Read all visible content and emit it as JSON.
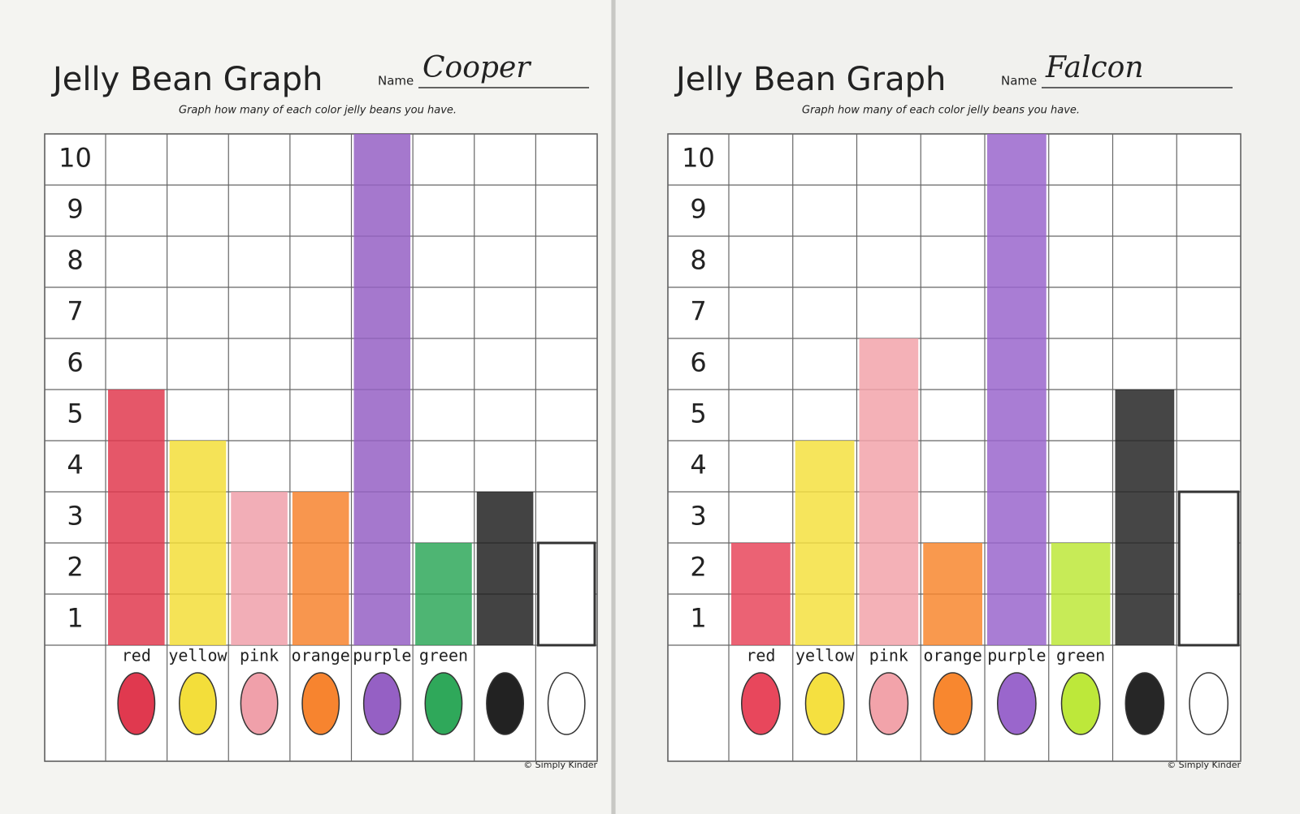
{
  "chart_data": [
    {
      "type": "bar",
      "title": "Jelly Bean Graph",
      "name_label": "Name",
      "name": "Cooper",
      "subtitle": "Graph how many of each color jelly beans you have.",
      "credit": "© Simply Kinder",
      "categories": [
        "red",
        "yellow",
        "pink",
        "orange",
        "purple",
        "green",
        null,
        null
      ],
      "values": [
        5,
        4,
        3,
        3,
        10,
        2,
        3,
        2
      ],
      "colors": [
        "#e0394f",
        "#f3de3a",
        "#f0a0aa",
        "#f7842f",
        "#9560c4",
        "#2fa85a",
        "#222222",
        "#ffffff"
      ],
      "ylim": [
        0,
        10
      ],
      "yticks": [
        1,
        2,
        3,
        4,
        5,
        6,
        7,
        8,
        9,
        10
      ],
      "grid": true
    },
    {
      "type": "bar",
      "title": "Jelly Bean Graph",
      "name_label": "Name",
      "name": "Falcon",
      "subtitle": "Graph how many of each color jelly beans you have.",
      "credit": "© Simply Kinder",
      "categories": [
        "red",
        "yellow",
        "pink",
        "orange",
        "purple",
        "green",
        null,
        null
      ],
      "values": [
        2,
        4,
        6,
        2,
        10,
        2,
        5,
        3
      ],
      "colors": [
        "#e8475c",
        "#f5e040",
        "#f2a3aa",
        "#f8872f",
        "#9a66cc",
        "#bde83a",
        "#262626",
        "#ffffff"
      ],
      "ylim": [
        0,
        10
      ],
      "yticks": [
        1,
        2,
        3,
        4,
        5,
        6,
        7,
        8,
        9,
        10
      ],
      "grid": true
    }
  ]
}
